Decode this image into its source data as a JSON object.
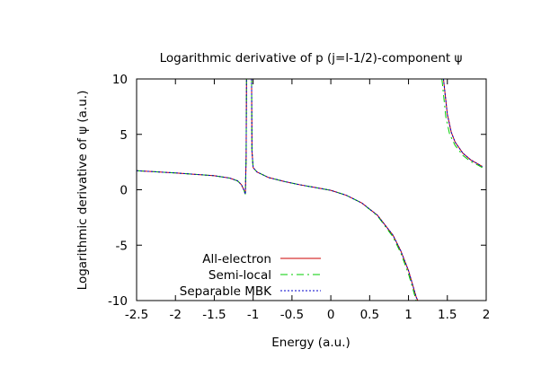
{
  "chart_data": {
    "type": "line",
    "title": "Logarithmic derivative of p (j=l-1/2)-component ψ",
    "xlabel": "Energy (a.u.)",
    "ylabel": "Logarithmic derivative of ψ (a.u.)",
    "xlim": [
      -2.5,
      2
    ],
    "ylim": [
      -10,
      10
    ],
    "xticks": [
      -2.5,
      -2,
      -1.5,
      -1,
      -0.5,
      0,
      0.5,
      1,
      1.5,
      2
    ],
    "yticks": [
      -10,
      -5,
      0,
      5,
      10
    ],
    "xtick_labels": [
      "-2.5",
      "-2",
      "-1.5",
      "-1",
      "-0.5",
      "0",
      "0.5",
      "1",
      "1.5",
      "2"
    ],
    "ytick_labels": [
      "-10",
      "-5",
      "0",
      "5",
      "10"
    ],
    "grid": false,
    "legend_position": "bottom-left",
    "series": [
      {
        "name": "All-electron",
        "color": "#cc0000",
        "dash": "solid",
        "segments": [
          [
            [
              -2.5,
              1.72
            ],
            [
              -2.0,
              1.52
            ],
            [
              -1.5,
              1.27
            ],
            [
              -1.3,
              1.05
            ],
            [
              -1.2,
              0.8
            ],
            [
              -1.15,
              0.45
            ],
            [
              -1.12,
              0.0
            ],
            [
              -1.1,
              -0.4
            ],
            [
              -1.09,
              3.0
            ],
            [
              -1.085,
              10.0
            ]
          ],
          [
            [
              -1.02,
              10.0
            ],
            [
              -1.015,
              3.5
            ],
            [
              -1.0,
              2.0
            ],
            [
              -0.95,
              1.6
            ],
            [
              -0.8,
              1.1
            ],
            [
              -0.6,
              0.75
            ],
            [
              -0.4,
              0.45
            ],
            [
              -0.2,
              0.2
            ],
            [
              0.0,
              -0.05
            ],
            [
              0.2,
              -0.5
            ],
            [
              0.4,
              -1.2
            ],
            [
              0.6,
              -2.3
            ],
            [
              0.8,
              -4.1
            ],
            [
              0.9,
              -5.5
            ],
            [
              1.0,
              -7.3
            ],
            [
              1.05,
              -8.5
            ],
            [
              1.1,
              -9.7
            ],
            [
              1.12,
              -10.0
            ]
          ],
          [
            [
              1.45,
              10.0
            ],
            [
              1.5,
              6.8
            ],
            [
              1.55,
              5.2
            ],
            [
              1.6,
              4.3
            ],
            [
              1.7,
              3.3
            ],
            [
              1.8,
              2.7
            ],
            [
              1.9,
              2.3
            ],
            [
              1.95,
              2.1
            ]
          ]
        ]
      },
      {
        "name": "Semi-local",
        "color": "#00cc00",
        "dash": "8 4 2 4",
        "segments": [
          [
            [
              -2.5,
              1.72
            ],
            [
              -2.0,
              1.52
            ],
            [
              -1.5,
              1.27
            ],
            [
              -1.3,
              1.05
            ],
            [
              -1.2,
              0.8
            ],
            [
              -1.15,
              0.45
            ],
            [
              -1.12,
              0.0
            ],
            [
              -1.1,
              -0.4
            ],
            [
              -1.09,
              3.0
            ],
            [
              -1.085,
              10.0
            ]
          ],
          [
            [
              -1.02,
              10.0
            ],
            [
              -1.015,
              3.5
            ],
            [
              -1.0,
              2.0
            ],
            [
              -0.95,
              1.6
            ],
            [
              -0.8,
              1.1
            ],
            [
              -0.6,
              0.75
            ],
            [
              -0.4,
              0.45
            ],
            [
              -0.2,
              0.2
            ],
            [
              0.0,
              -0.05
            ],
            [
              0.2,
              -0.5
            ],
            [
              0.4,
              -1.2
            ],
            [
              0.6,
              -2.35
            ],
            [
              0.8,
              -4.25
            ],
            [
              0.9,
              -5.7
            ],
            [
              1.0,
              -7.6
            ],
            [
              1.05,
              -8.8
            ],
            [
              1.09,
              -9.8
            ],
            [
              1.1,
              -10.0
            ]
          ],
          [
            [
              1.43,
              10.0
            ],
            [
              1.48,
              6.6
            ],
            [
              1.53,
              5.0
            ],
            [
              1.6,
              4.0
            ],
            [
              1.7,
              3.1
            ],
            [
              1.8,
              2.55
            ],
            [
              1.9,
              2.2
            ],
            [
              1.95,
              2.0
            ]
          ]
        ]
      },
      {
        "name": "Separable MBK",
        "color": "#0000cc",
        "dash": "2 2",
        "segments": [
          [
            [
              -2.5,
              1.72
            ],
            [
              -2.0,
              1.52
            ],
            [
              -1.5,
              1.27
            ],
            [
              -1.3,
              1.05
            ],
            [
              -1.2,
              0.8
            ],
            [
              -1.15,
              0.45
            ],
            [
              -1.12,
              0.0
            ],
            [
              -1.1,
              -0.4
            ],
            [
              -1.09,
              3.0
            ],
            [
              -1.085,
              10.0
            ]
          ],
          [
            [
              -1.02,
              10.0
            ],
            [
              -1.015,
              3.5
            ],
            [
              -1.0,
              2.0
            ],
            [
              -0.95,
              1.6
            ],
            [
              -0.8,
              1.1
            ],
            [
              -0.6,
              0.75
            ],
            [
              -0.4,
              0.45
            ],
            [
              -0.2,
              0.2
            ],
            [
              0.0,
              -0.05
            ],
            [
              0.2,
              -0.5
            ],
            [
              0.4,
              -1.2
            ],
            [
              0.6,
              -2.3
            ],
            [
              0.8,
              -4.1
            ],
            [
              0.9,
              -5.5
            ],
            [
              1.0,
              -7.3
            ],
            [
              1.05,
              -8.5
            ],
            [
              1.1,
              -9.7
            ],
            [
              1.12,
              -10.0
            ]
          ],
          [
            [
              1.45,
              10.0
            ],
            [
              1.5,
              6.8
            ],
            [
              1.55,
              5.2
            ],
            [
              1.6,
              4.3
            ],
            [
              1.7,
              3.3
            ],
            [
              1.8,
              2.7
            ],
            [
              1.9,
              2.3
            ],
            [
              1.95,
              2.1
            ]
          ]
        ]
      }
    ]
  }
}
